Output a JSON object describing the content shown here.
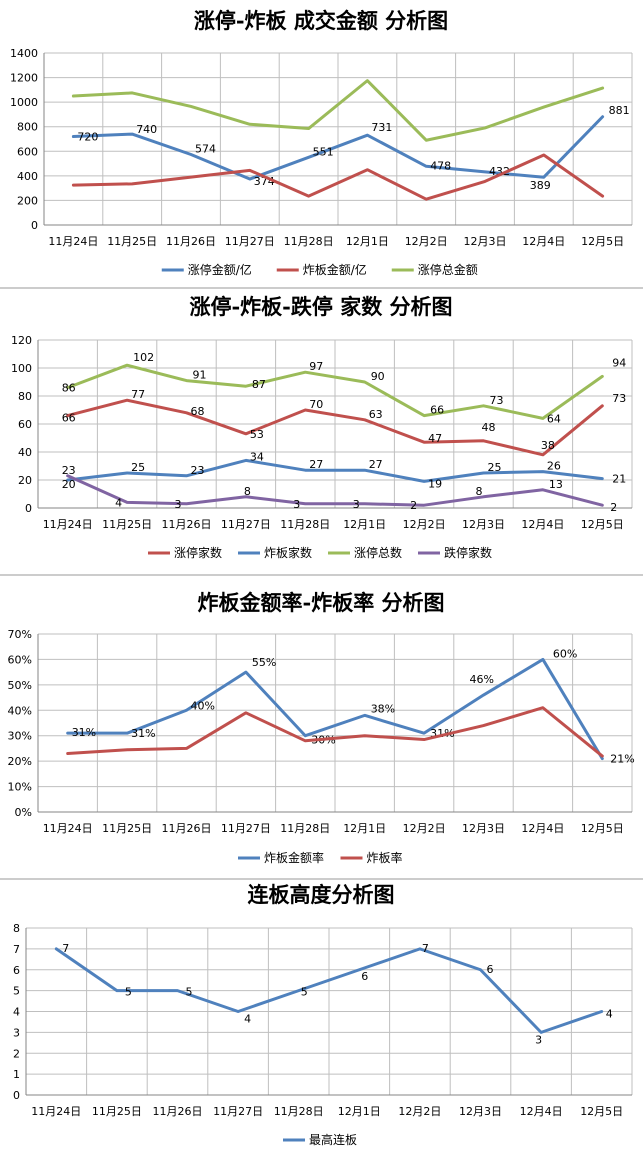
{
  "chart_data": [
    {
      "type": "line",
      "title": "涨停-炸板 成交金额 分析图",
      "categories": [
        "11月24日",
        "11月25日",
        "11月26日",
        "11月27日",
        "11月28日",
        "12月1日",
        "12月2日",
        "12月3日",
        "12月4日",
        "12月5日"
      ],
      "ylim": [
        0,
        1400
      ],
      "yticks": [
        "0",
        "200",
        "400",
        "600",
        "800",
        "1000",
        "1200",
        "1400"
      ],
      "grid": true,
      "legend": "bottom",
      "series": [
        {
          "name": "涨停金额/亿",
          "color": "#4f81bd",
          "values": [
            720,
            740,
            574,
            374,
            551,
            731,
            478,
            432,
            389,
            881
          ],
          "labels": [
            "720",
            "740",
            "574",
            "374",
            "551",
            "731",
            "478",
            "432",
            "389",
            "881"
          ]
        },
        {
          "name": "炸板金额/亿",
          "color": "#c0504d",
          "values": [
            325,
            335,
            390,
            445,
            235,
            450,
            210,
            355,
            570,
            235
          ],
          "labels": []
        },
        {
          "name": "涨停总金额",
          "color": "#9bbb59",
          "values": [
            1050,
            1075,
            965,
            820,
            785,
            1175,
            690,
            790,
            960,
            1115
          ],
          "labels": []
        }
      ]
    },
    {
      "type": "line",
      "title": "涨停-炸板-跌停 家数 分析图",
      "categories": [
        "11月24日",
        "11月25日",
        "11月26日",
        "11月27日",
        "11月28日",
        "12月1日",
        "12月2日",
        "12月3日",
        "12月4日",
        "12月5日"
      ],
      "ylim": [
        0,
        120
      ],
      "yticks": [
        "0",
        "20",
        "40",
        "60",
        "80",
        "100",
        "120"
      ],
      "grid": true,
      "legend": "bottom",
      "series": [
        {
          "name": "涨停家数",
          "color": "#c0504d",
          "values": [
            66,
            77,
            68,
            53,
            70,
            63,
            47,
            48,
            38,
            73
          ],
          "labels": [
            "66",
            "77",
            "68",
            "53",
            "70",
            "63",
            "47",
            "48",
            "38",
            "73"
          ]
        },
        {
          "name": "炸板家数",
          "color": "#4f81bd",
          "values": [
            20,
            25,
            23,
            34,
            27,
            27,
            19,
            25,
            26,
            21
          ],
          "labels": [
            "20",
            "25",
            "23",
            "34",
            "27",
            "27",
            "19",
            "25",
            "26",
            "21"
          ]
        },
        {
          "name": "涨停总数",
          "color": "#9bbb59",
          "values": [
            86,
            102,
            91,
            87,
            97,
            90,
            66,
            73,
            64,
            94
          ],
          "labels": [
            "86",
            "102",
            "91",
            "87",
            "97",
            "90",
            "66",
            "73",
            "64",
            "94"
          ]
        },
        {
          "name": "跌停家数",
          "color": "#8064a2",
          "values": [
            23,
            4,
            3,
            8,
            3,
            3,
            2,
            8,
            13,
            2
          ],
          "labels": [
            "23",
            "4",
            "3",
            "8",
            "3",
            "3",
            "2",
            "8",
            "13",
            "2"
          ]
        }
      ]
    },
    {
      "type": "line",
      "title": "炸板金额率-炸板率 分析图",
      "categories": [
        "11月24日",
        "11月25日",
        "11月26日",
        "11月27日",
        "11月28日",
        "12月1日",
        "12月2日",
        "12月3日",
        "12月4日",
        "12月5日"
      ],
      "ylim": [
        0,
        70
      ],
      "yticks": [
        "0%",
        "10%",
        "20%",
        "30%",
        "40%",
        "50%",
        "60%",
        "70%"
      ],
      "grid": true,
      "legend": "bottom",
      "series": [
        {
          "name": "炸板金额率",
          "color": "#4f81bd",
          "values": [
            31,
            31,
            40,
            55,
            30,
            38,
            31,
            46,
            60,
            21
          ],
          "labels": [
            "31%",
            "31%",
            "40%",
            "55%",
            "30%",
            "38%",
            "31%",
            "46%",
            "60%",
            "21%"
          ]
        },
        {
          "name": "炸板率",
          "color": "#c0504d",
          "values": [
            23,
            24.5,
            25,
            39,
            28,
            30,
            28.5,
            34,
            41,
            22
          ],
          "labels": []
        }
      ]
    },
    {
      "type": "line",
      "title": "连板高度分析图",
      "categories": [
        "11月24日",
        "11月25日",
        "11月26日",
        "11月27日",
        "11月28日",
        "12月1日",
        "12月2日",
        "12月3日",
        "12月4日",
        "12月5日"
      ],
      "ylim": [
        0,
        8
      ],
      "yticks": [
        "0",
        "1",
        "2",
        "3",
        "4",
        "5",
        "6",
        "7",
        "8"
      ],
      "grid": true,
      "legend": "bottom",
      "series": [
        {
          "name": "最高连板",
          "color": "#4f81bd",
          "values": [
            7,
            5,
            5,
            4,
            5,
            6,
            7,
            6,
            3,
            4
          ],
          "labels": [
            "7",
            "5",
            "5",
            "4",
            "5",
            "6",
            "7",
            "6",
            "3",
            "4"
          ]
        }
      ]
    }
  ]
}
